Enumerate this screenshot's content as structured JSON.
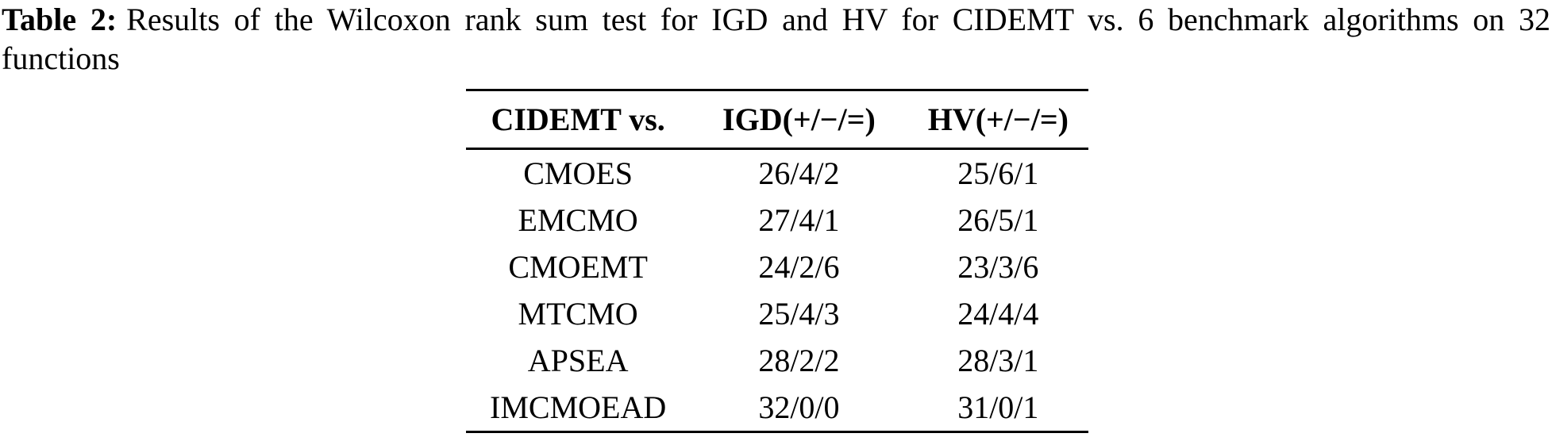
{
  "caption": {
    "label": "Table 2:",
    "line1_rest": "Results of the Wilcoxon rank sum test for IGD and HV for CIDEMT vs. 6 benchmark algorithms on 32",
    "line2": "functions"
  },
  "table": {
    "headers": {
      "algorithm": "CIDEMT vs.",
      "igd": "IGD(+/−/=)",
      "hv": "HV(+/−/=)"
    },
    "rows": [
      {
        "algorithm": "CMOES",
        "igd": "26/4/2",
        "hv": "25/6/1"
      },
      {
        "algorithm": "EMCMO",
        "igd": "27/4/1",
        "hv": "26/5/1"
      },
      {
        "algorithm": "CMOEMT",
        "igd": "24/2/6",
        "hv": "23/3/6"
      },
      {
        "algorithm": "MTCMO",
        "igd": "25/4/3",
        "hv": "24/4/4"
      },
      {
        "algorithm": "APSEA",
        "igd": "28/2/2",
        "hv": "28/3/1"
      },
      {
        "algorithm": "IMCMOEAD",
        "igd": "32/0/0",
        "hv": "31/0/1"
      }
    ]
  },
  "colors": {
    "text": "#000000",
    "background": "#ffffff",
    "rule": "#000000"
  }
}
